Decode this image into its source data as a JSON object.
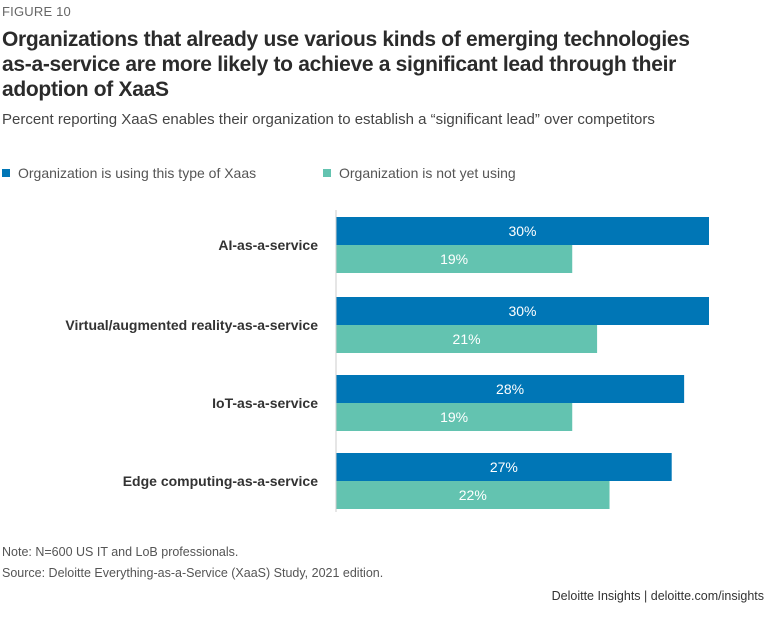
{
  "figure_label": "FIGURE 10",
  "colors": {
    "using": "#0076b6",
    "not_using": "#63c3b0",
    "axis": "#cccccc"
  },
  "chart_data": {
    "type": "bar",
    "orientation": "horizontal",
    "title": "Organizations that already use various kinds of emerging technologies as-a-service are more likely to achieve a significant lead through their adoption of XaaS",
    "subtitle": "Percent reporting XaaS enables their organization to establish a “significant lead” over competitors",
    "categories": [
      "AI-as-a-service",
      "Virtual/augmented reality-as-a-service",
      "IoT-as-a-service",
      "Edge computing-as-a-service"
    ],
    "series": [
      {
        "name": "Organization is using this type of Xaas",
        "values": [
          30,
          30,
          28,
          27
        ],
        "labels": [
          "30%",
          "30%",
          "28%",
          "27%"
        ]
      },
      {
        "name": "Organization is not yet using",
        "values": [
          19,
          21,
          19,
          22
        ],
        "labels": [
          "19%",
          "21%",
          "19%",
          "22%"
        ]
      }
    ],
    "xlim": [
      0,
      30
    ],
    "grid": false,
    "legend_position": "top-left"
  },
  "notes": {
    "note": "Note: N=600 US IT and LoB professionals.",
    "source": "Source: Deloitte Everything-as-a-Service (XaaS) Study, 2021 edition."
  },
  "credit": "Deloitte Insights | deloitte.com/insights"
}
